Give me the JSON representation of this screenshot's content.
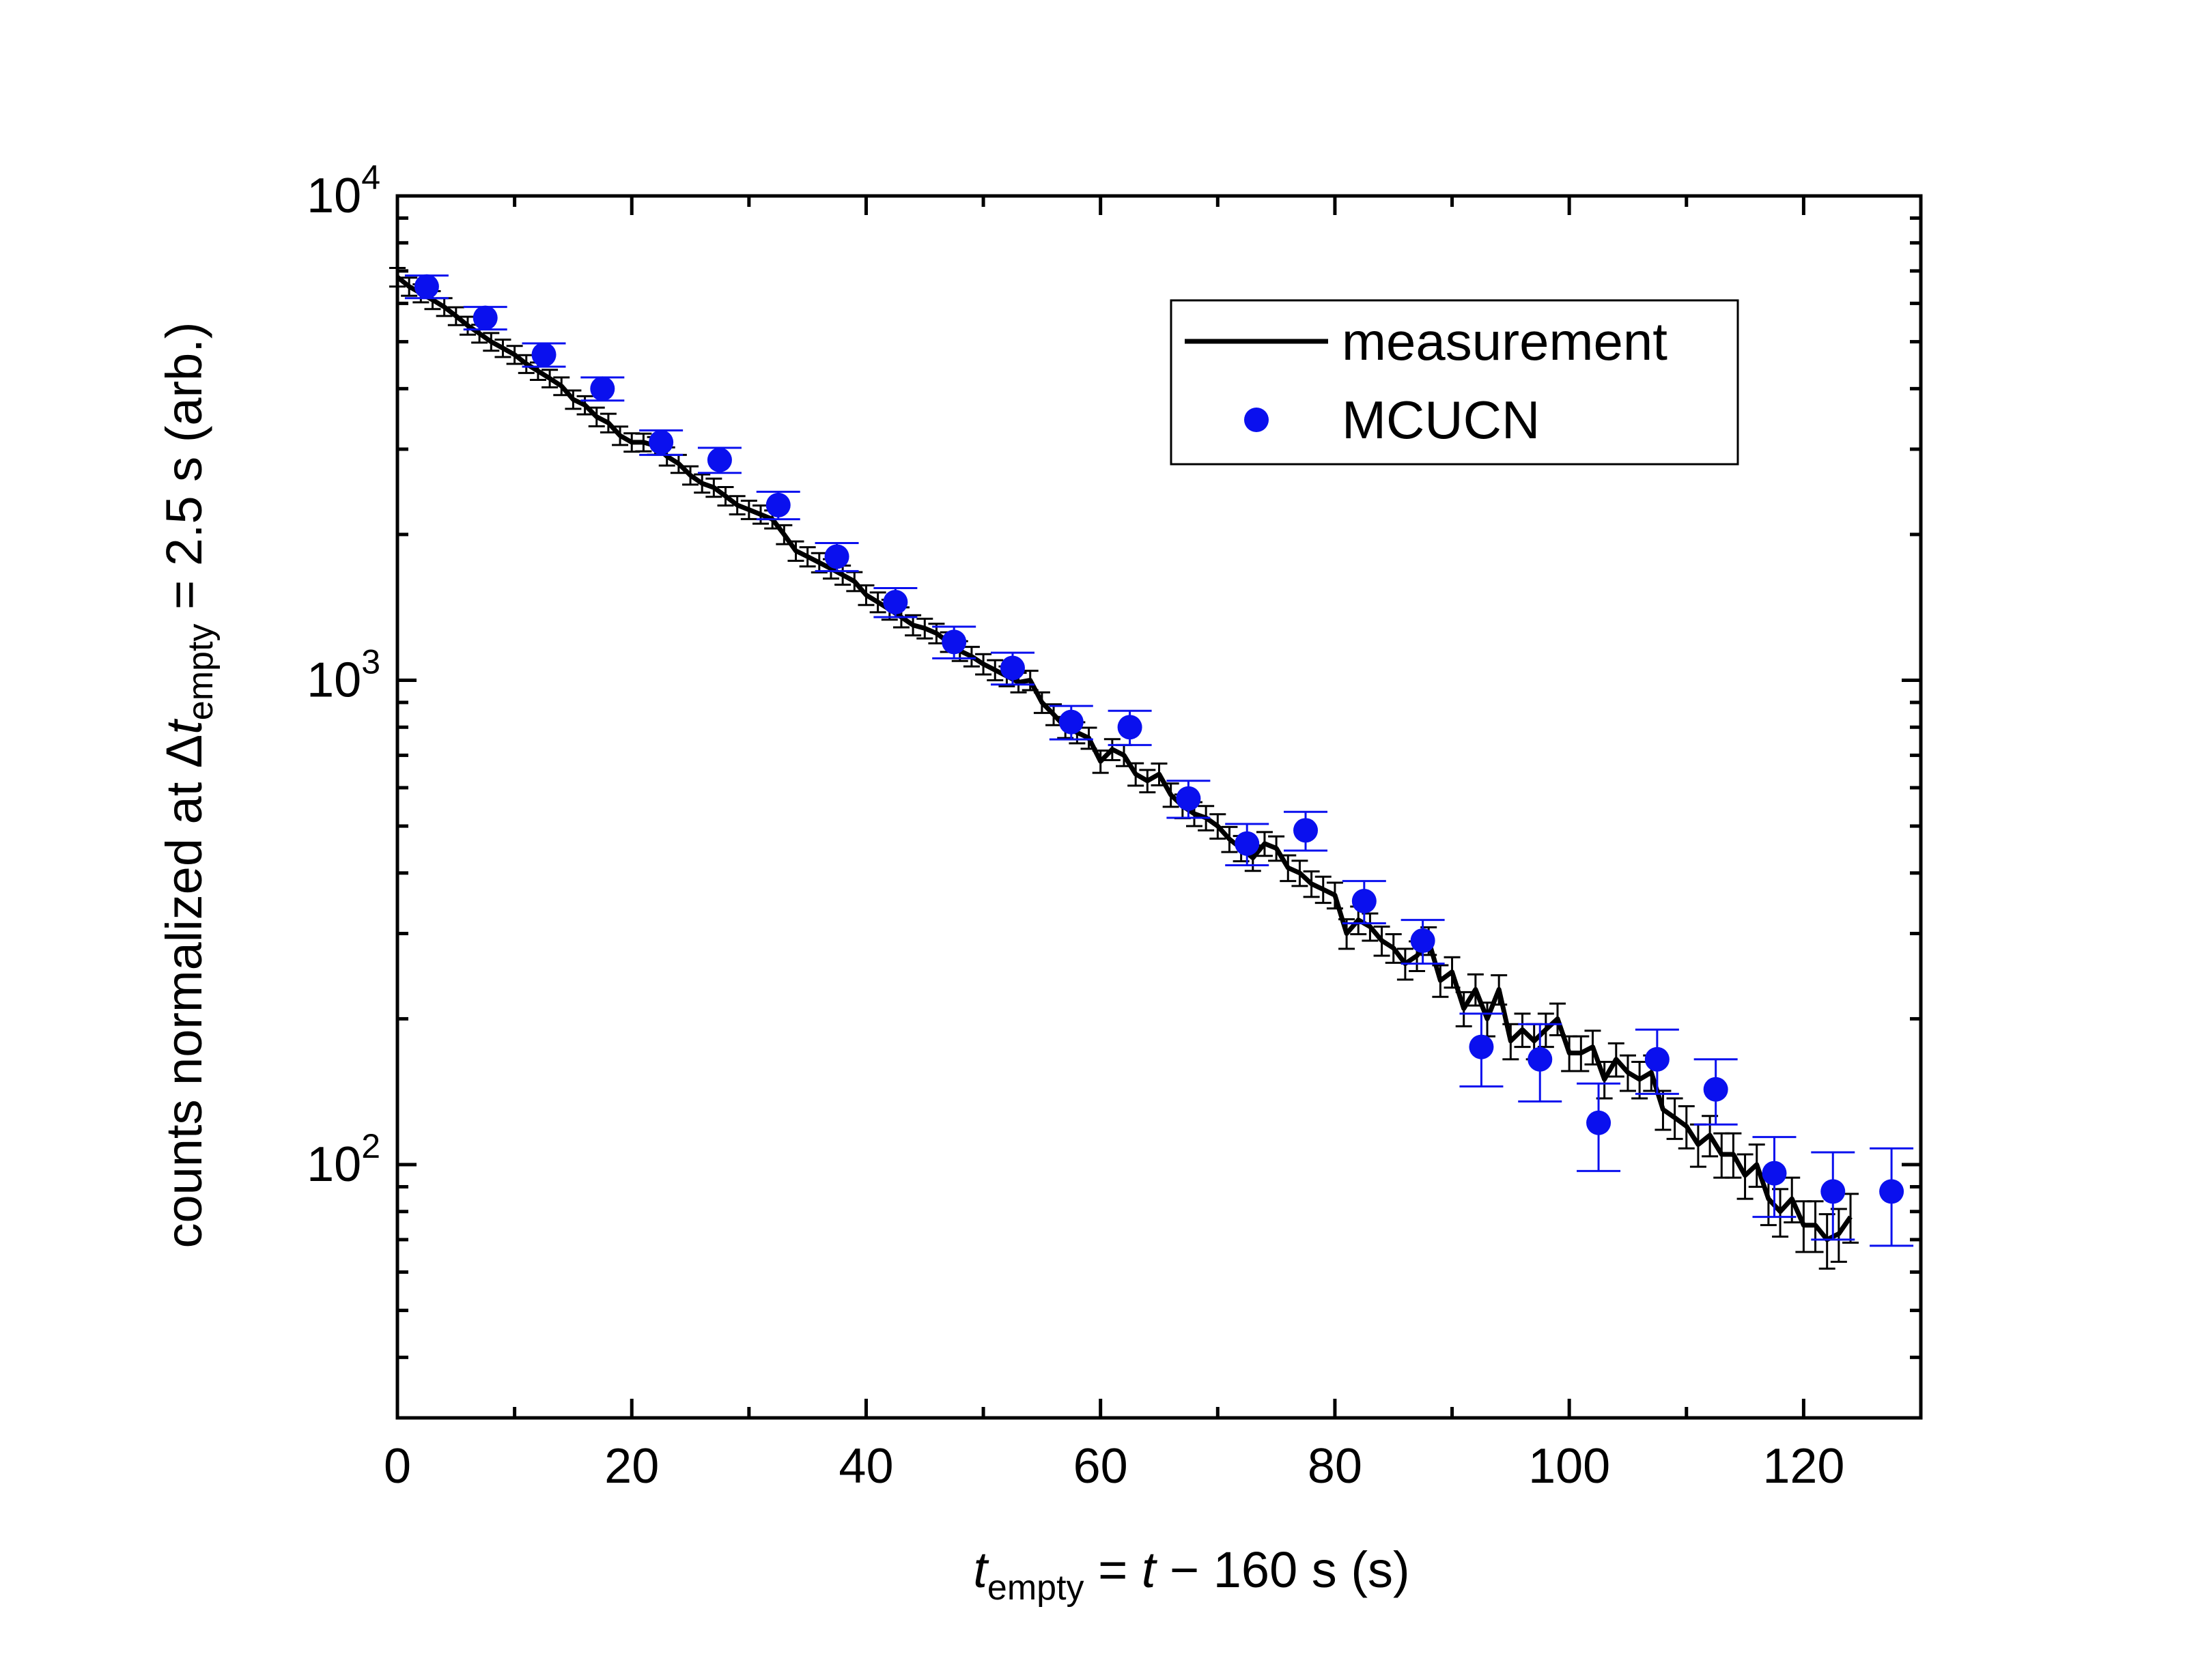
{
  "chart_data": {
    "type": "scatter",
    "title": "",
    "xlabel": {
      "main": "t",
      "sub": "empty",
      "rest": " = ",
      "var": "t",
      "tail": " − 160 s  (s)"
    },
    "ylabel": {
      "pre": "counts normalized at ",
      "delta": "Δ",
      "var": "t",
      "sub": "empty",
      "post": " = 2.5 s  (arb.)"
    },
    "x_range": [
      0,
      130
    ],
    "y_range": [
      30,
      10000
    ],
    "y_scale": "log",
    "x_ticks": [
      "0",
      "20",
      "40",
      "60",
      "80",
      "100",
      "120"
    ],
    "y_ticks": [
      {
        "base": "10",
        "exp": "2"
      },
      {
        "base": "10",
        "exp": "3"
      },
      {
        "base": "10",
        "exp": "4"
      }
    ],
    "legend": {
      "position": "top-right",
      "entries": [
        "measurement",
        "MCUCN"
      ]
    },
    "colors": {
      "measurement": "#000000",
      "mcucn": "#0a10ee"
    },
    "series": [
      {
        "name": "measurement",
        "kind": "line-with-errorbars",
        "x": [
          0,
          1,
          2,
          3,
          4,
          5,
          6,
          7,
          8,
          9,
          10,
          11,
          12,
          13,
          14,
          15,
          16,
          17,
          18,
          19,
          20,
          21,
          22,
          23,
          24,
          25,
          26,
          27,
          28,
          29,
          30,
          31,
          32,
          33,
          34,
          35,
          36,
          37,
          38,
          39,
          40,
          41,
          42,
          43,
          44,
          45,
          46,
          47,
          48,
          49,
          50,
          51,
          52,
          53,
          54,
          55,
          56,
          57,
          58,
          59,
          60,
          61,
          62,
          63,
          64,
          65,
          66,
          67,
          68,
          69,
          70,
          71,
          72,
          73,
          74,
          75,
          76,
          77,
          78,
          79,
          80,
          81,
          82,
          83,
          84,
          85,
          86,
          87,
          88,
          89,
          90,
          91,
          92,
          93,
          94,
          95,
          96,
          97,
          98,
          99,
          100,
          101,
          102,
          103,
          104,
          105,
          106,
          107,
          108,
          109,
          110,
          111,
          112,
          113,
          114,
          115,
          116,
          117,
          118,
          119,
          120,
          121,
          122,
          123,
          124
        ],
        "y": [
          6800,
          6500,
          6300,
          6100,
          5900,
          5650,
          5400,
          5200,
          5000,
          4850,
          4700,
          4500,
          4350,
          4200,
          4050,
          3800,
          3700,
          3500,
          3400,
          3200,
          3100,
          3100,
          3050,
          2900,
          2800,
          2650,
          2550,
          2500,
          2400,
          2300,
          2250,
          2200,
          2150,
          2000,
          1850,
          1800,
          1750,
          1700,
          1650,
          1600,
          1500,
          1450,
          1400,
          1350,
          1300,
          1280,
          1250,
          1200,
          1150,
          1120,
          1080,
          1050,
          1020,
          990,
          1000,
          900,
          850,
          800,
          780,
          760,
          680,
          720,
          700,
          640,
          620,
          640,
          580,
          550,
          530,
          520,
          500,
          470,
          450,
          430,
          460,
          450,
          410,
          400,
          380,
          370,
          360,
          300,
          320,
          310,
          290,
          280,
          260,
          270,
          290,
          240,
          250,
          210,
          230,
          200,
          230,
          180,
          190,
          180,
          190,
          200,
          170,
          170,
          175,
          150,
          165,
          155,
          150,
          155,
          130,
          125,
          120,
          110,
          115,
          105,
          105,
          95,
          100,
          85,
          80,
          85,
          75,
          75,
          70,
          72,
          78
        ],
        "err": [
          300,
          280,
          270,
          260,
          250,
          240,
          230,
          220,
          210,
          200,
          200,
          190,
          180,
          175,
          170,
          165,
          160,
          155,
          150,
          140,
          135,
          130,
          128,
          125,
          120,
          115,
          110,
          108,
          105,
          100,
          98,
          95,
          92,
          90,
          85,
          82,
          80,
          78,
          75,
          72,
          70,
          68,
          66,
          64,
          62,
          60,
          58,
          56,
          54,
          52,
          52,
          50,
          48,
          46,
          46,
          44,
          42,
          40,
          39,
          38,
          36,
          36,
          35,
          34,
          33,
          33,
          32,
          31,
          30,
          30,
          29,
          28,
          27,
          26,
          26,
          26,
          25,
          24,
          23,
          23,
          22,
          21,
          21,
          20,
          20,
          19,
          19,
          19,
          19,
          18,
          18,
          17,
          17,
          16,
          16,
          15,
          15,
          15,
          15,
          15,
          14,
          14,
          14,
          13,
          13,
          13,
          13,
          13,
          12,
          12,
          12,
          11,
          11,
          11,
          11,
          10,
          10,
          10,
          9,
          9,
          9,
          9,
          9,
          9,
          9
        ]
      },
      {
        "name": "MCUCN",
        "kind": "scatter-with-errorbars",
        "x": [
          2.5,
          7.5,
          12.5,
          17.5,
          22.5,
          27.5,
          32.5,
          37.5,
          42.5,
          47.5,
          52.5,
          57.5,
          62.5,
          67.5,
          72.5,
          77.5,
          82.5,
          87.5,
          92.5,
          97.5,
          102.5,
          107.5,
          112.5,
          117.5,
          122.5,
          127.5
        ],
        "y": [
          6500,
          5600,
          4700,
          4000,
          3100,
          2850,
          2300,
          1800,
          1450,
          1200,
          1060,
          820,
          800,
          570,
          460,
          490,
          350,
          290,
          175,
          165,
          122,
          165,
          143,
          96,
          88,
          88
        ],
        "err": [
          350,
          300,
          260,
          220,
          180,
          170,
          150,
          120,
          100,
          90,
          80,
          65,
          65,
          50,
          45,
          45,
          35,
          30,
          30,
          30,
          25,
          25,
          22,
          18,
          18,
          20
        ]
      }
    ]
  }
}
